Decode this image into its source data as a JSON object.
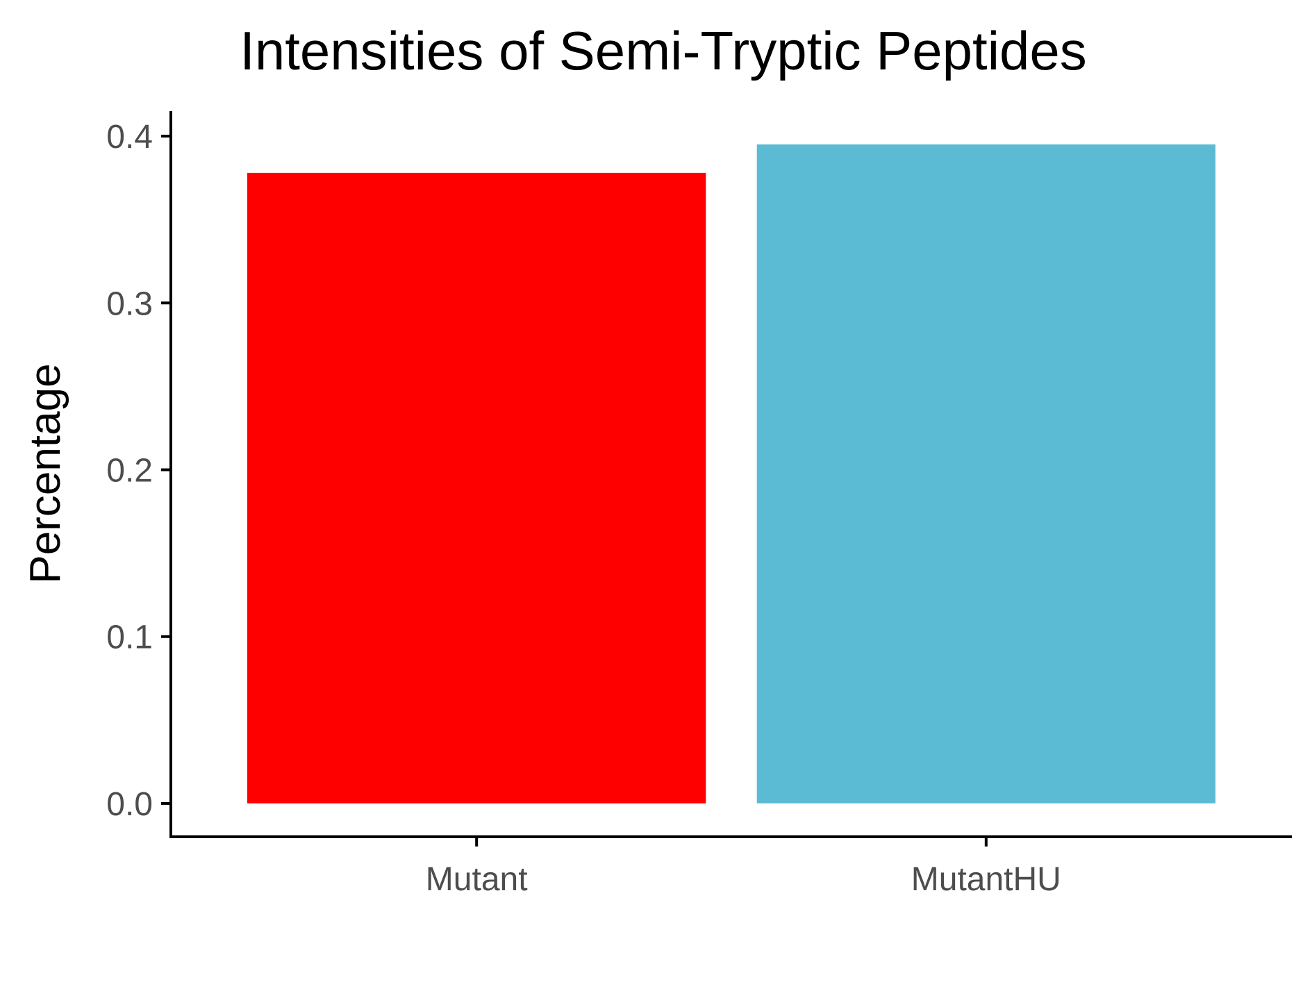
{
  "chart_data": {
    "type": "bar",
    "title": "Intensities of Semi-Tryptic Peptides",
    "xlabel": "",
    "ylabel": "Percentage",
    "categories": [
      "Mutant",
      "MutantHU"
    ],
    "values": [
      0.378,
      0.395
    ],
    "colors": [
      "#ff0000",
      "#5bbbd4"
    ],
    "ylim": [
      -0.02,
      0.415
    ],
    "yticks": [
      0.0,
      0.1,
      0.2,
      0.3,
      0.4
    ],
    "ytick_labels": [
      "0.0",
      "0.1",
      "0.2",
      "0.3",
      "0.4"
    ],
    "grid": false,
    "legend": "none"
  }
}
